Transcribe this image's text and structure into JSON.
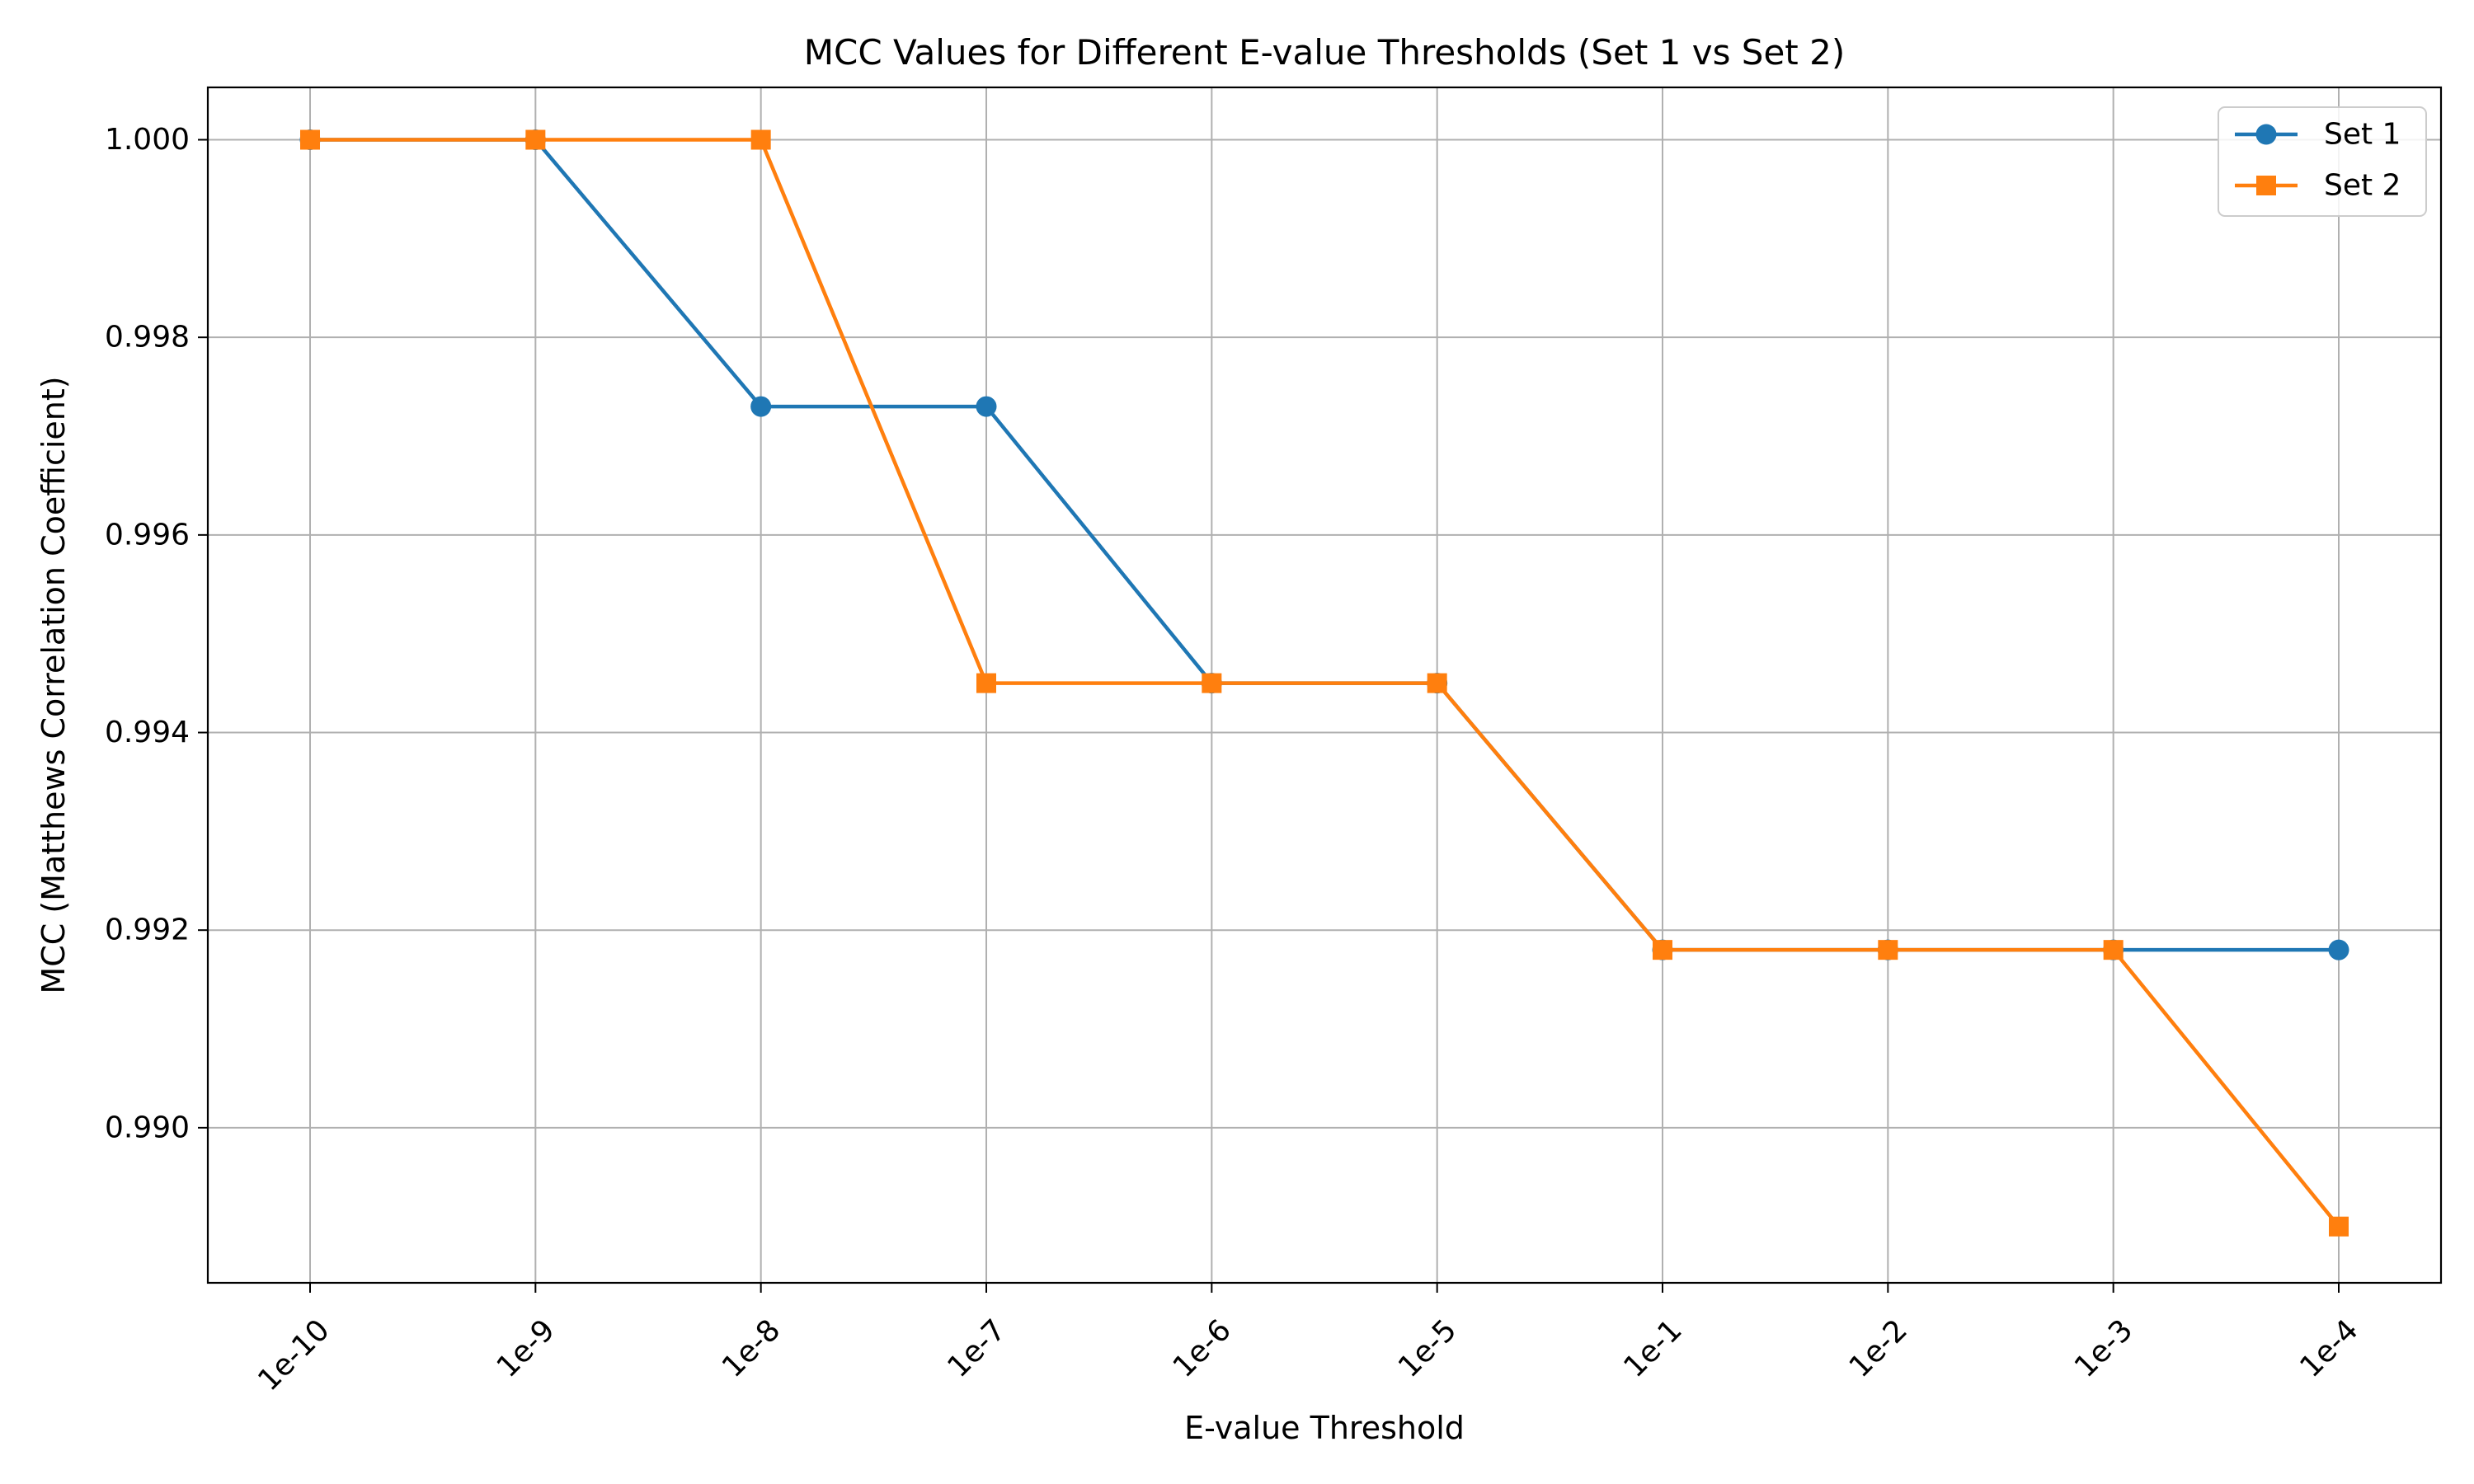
{
  "chart_data": {
    "type": "line",
    "title": "MCC Values for Different E-value Thresholds (Set 1 vs Set 2)",
    "xlabel": "E-value Threshold",
    "ylabel": "MCC (Matthews Correlation Coefficient)",
    "categories": [
      "1e-10",
      "1e-9",
      "1e-8",
      "1e-7",
      "1e-6",
      "1e-5",
      "1e-1",
      "1e-2",
      "1e-3",
      "1e-4"
    ],
    "ylim": [
      0.98843,
      1.00053
    ],
    "yticks": [
      "0.990",
      "0.992",
      "0.994",
      "0.996",
      "0.998",
      "1.000"
    ],
    "ytick_values": [
      0.99,
      0.992,
      0.994,
      0.996,
      0.998,
      1.0
    ],
    "grid": true,
    "legend_position": "top-right",
    "series": [
      {
        "name": "Set 1",
        "color": "#1f77b4",
        "marker": "circle",
        "values": [
          1.0,
          1.0,
          0.9973,
          0.9973,
          0.9945,
          0.9945,
          0.9918,
          0.9918,
          0.9918,
          0.9918
        ]
      },
      {
        "name": "Set 2",
        "color": "#ff7f0e",
        "marker": "square",
        "values": [
          1.0,
          1.0,
          1.0,
          0.9945,
          0.9945,
          0.9945,
          0.9918,
          0.9918,
          0.9918,
          0.989
        ]
      }
    ]
  }
}
